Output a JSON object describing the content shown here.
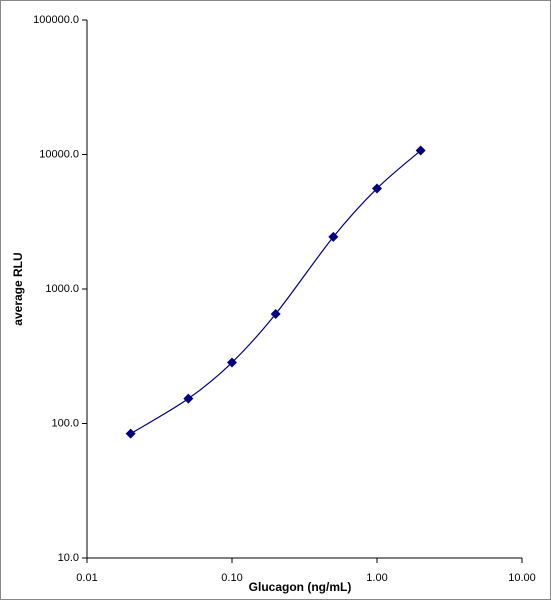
{
  "chart_data": {
    "type": "line",
    "x_label": "Glucagon (ng/mL)",
    "y_label": "average RLU",
    "x_log": true,
    "y_log": true,
    "grid": false,
    "smooth": true,
    "marker": "diamond",
    "series": [
      {
        "color": "#00007f",
        "x": [
          0.02,
          0.05,
          0.1,
          0.2,
          0.5,
          1,
          2
        ],
        "values": [
          84,
          153,
          284,
          652,
          2440,
          5590,
          10700
        ]
      }
    ],
    "xlim": [
      0.01,
      10
    ],
    "xticks": [
      0.01,
      {
        "value": 0.1,
        "label": "0.10"
      },
      {
        "value": 1,
        "label": "1.00"
      },
      {
        "value": 10,
        "label": "10.00"
      }
    ],
    "ylim": [
      10,
      100000
    ],
    "yticks": [
      {
        "value": 10,
        "label": "10.0"
      },
      {
        "value": 100,
        "label": "100.0"
      },
      {
        "value": 1000,
        "label": "1000.0"
      },
      {
        "value": 10000,
        "label": "10000.0"
      },
      {
        "value": 100000,
        "label": "100000.0"
      }
    ]
  }
}
